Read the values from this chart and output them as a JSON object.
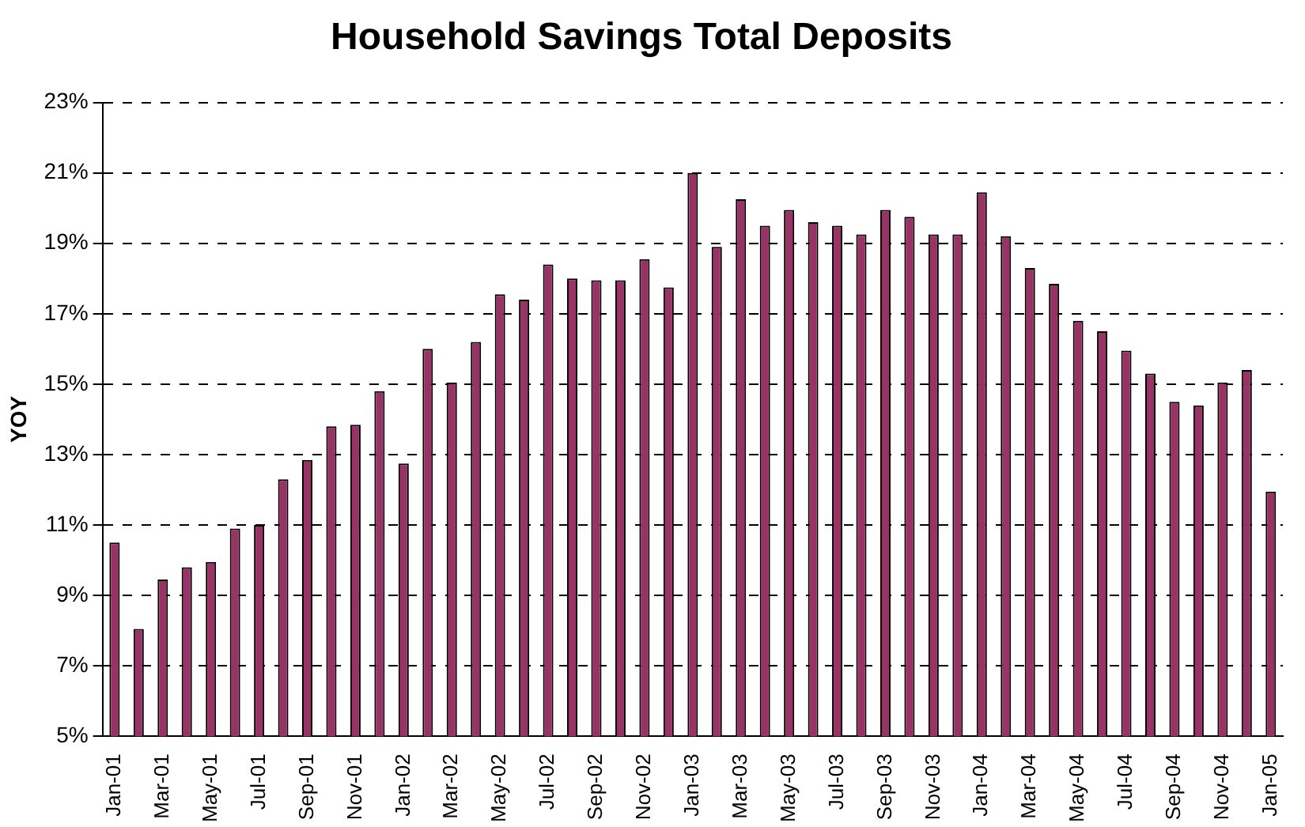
{
  "chart_data": {
    "type": "bar",
    "title": "Household Savings Total Deposits",
    "ylabel": "YOY",
    "categories": [
      "Jan-01",
      null,
      "Mar-01",
      null,
      "May-01",
      null,
      "Jul-01",
      null,
      "Sep-01",
      null,
      "Nov-01",
      null,
      "Jan-02",
      null,
      "Mar-02",
      null,
      "May-02",
      null,
      "Jul-02",
      null,
      "Sep-02",
      null,
      "Nov-02",
      null,
      "Jan-03",
      null,
      "Mar-03",
      null,
      "May-03",
      null,
      "Jul-03",
      null,
      "Sep-03",
      null,
      "Nov-03",
      null,
      "Jan-04",
      null,
      "Mar-04",
      null,
      "May-04",
      null,
      "Jul-04",
      null,
      "Sep-04",
      null,
      "Nov-04",
      null,
      "Jan-05"
    ],
    "values": [
      10.5,
      8.05,
      9.45,
      9.8,
      9.95,
      10.9,
      11.0,
      12.3,
      12.85,
      13.8,
      13.85,
      14.8,
      12.75,
      16.0,
      15.05,
      16.2,
      17.55,
      17.4,
      18.4,
      18.0,
      17.95,
      17.95,
      18.55,
      17.75,
      21.0,
      18.9,
      20.25,
      19.5,
      19.95,
      19.6,
      19.5,
      19.25,
      19.95,
      19.75,
      19.25,
      19.25,
      20.45,
      19.2,
      18.3,
      17.85,
      16.8,
      16.5,
      15.95,
      15.3,
      14.5,
      14.4,
      15.05,
      15.4,
      11.95
    ],
    "color": "#993366",
    "ylim": [
      5,
      23
    ],
    "yticks": [
      {
        "value": 5,
        "label": "5%"
      },
      {
        "value": 7,
        "label": "7%"
      },
      {
        "value": 9,
        "label": "9%"
      },
      {
        "value": 11,
        "label": "11%"
      },
      {
        "value": 13,
        "label": "13%"
      },
      {
        "value": 15,
        "label": "15%"
      },
      {
        "value": 17,
        "label": "17%"
      },
      {
        "value": 19,
        "label": "19%"
      },
      {
        "value": 21,
        "label": "21%"
      },
      {
        "value": 23,
        "label": "23%"
      }
    ],
    "grid": "y",
    "legend": false
  }
}
